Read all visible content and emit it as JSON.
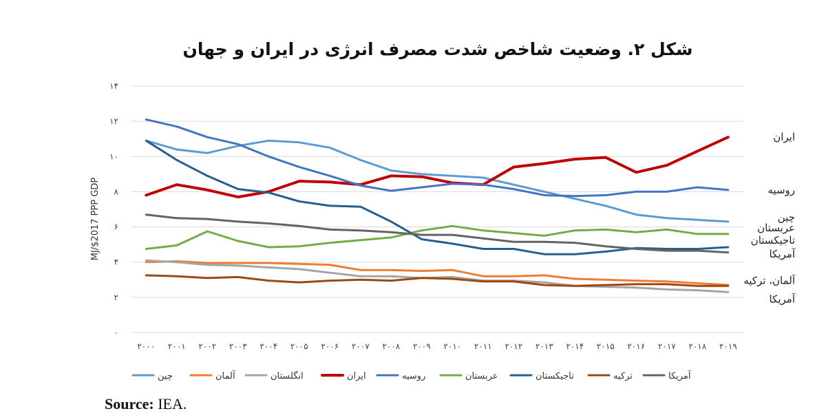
{
  "chart_data": {
    "type": "line",
    "title": "شکل ۲. وضعیت شاخص شدت مصرف انرژی در ایران و جهان",
    "ylabel": "MJ/$2017 PPP GDP",
    "ylim": [
      0,
      14
    ],
    "yticks": [
      {
        "value": 0,
        "label": "۰"
      },
      {
        "value": 2,
        "label": "۲"
      },
      {
        "value": 4,
        "label": "۴"
      },
      {
        "value": 6,
        "label": "۶"
      },
      {
        "value": 8,
        "label": "۸"
      },
      {
        "value": 10,
        "label": "۱۰"
      },
      {
        "value": 12,
        "label": "۱۲"
      },
      {
        "value": 14,
        "label": "۱۴"
      }
    ],
    "grid": true,
    "legend_position": "bottom",
    "categories": [
      "۲۰۰۰",
      "۲۰۰۱",
      "۲۰۰۲",
      "۲۰۰۳",
      "۲۰۰۴",
      "۲۰۰۵",
      "۲۰۰۶",
      "۲۰۰۷",
      "۲۰۰۸",
      "۲۰۰۹",
      "۲۰۱۰",
      "۲۰۱۱",
      "۲۰۱۲",
      "۲۰۱۳",
      "۲۰۱۴",
      "۲۰۱۵",
      "۲۰۱۶",
      "۲۰۱۷",
      "۲۰۱۸",
      "۲۰۱۹"
    ],
    "series": [
      {
        "name": "چین",
        "color": "#5b9bd5",
        "width": 3,
        "values": [
          10.9,
          10.4,
          10.2,
          10.6,
          10.9,
          10.8,
          10.5,
          9.8,
          9.2,
          9.0,
          8.9,
          8.8,
          8.4,
          8.0,
          7.6,
          7.2,
          6.7,
          6.5,
          6.4,
          6.3
        ]
      },
      {
        "name": "آلمان",
        "color": "#ed7d31",
        "width": 3,
        "values": [
          4.0,
          4.05,
          3.95,
          3.95,
          3.95,
          3.9,
          3.85,
          3.55,
          3.55,
          3.5,
          3.55,
          3.2,
          3.2,
          3.25,
          3.05,
          3.0,
          2.95,
          2.9,
          2.8,
          2.7
        ]
      },
      {
        "name": "انگلستان",
        "color": "#a5a5a5",
        "width": 3,
        "values": [
          4.1,
          4.0,
          3.85,
          3.8,
          3.7,
          3.6,
          3.4,
          3.2,
          3.2,
          3.1,
          3.15,
          2.95,
          2.95,
          2.85,
          2.65,
          2.6,
          2.55,
          2.45,
          2.4,
          2.3
        ]
      },
      {
        "name": "ایران",
        "color": "#c00000",
        "width": 4,
        "values": [
          7.8,
          8.4,
          8.1,
          7.7,
          8.0,
          8.6,
          8.55,
          8.4,
          8.9,
          8.85,
          8.5,
          8.4,
          9.4,
          9.6,
          9.85,
          9.95,
          9.1,
          9.5,
          10.3,
          11.1
        ]
      },
      {
        "name": "روسیه",
        "color": "#4472c4",
        "width": 3,
        "values": [
          12.1,
          11.7,
          11.1,
          10.7,
          10.0,
          9.4,
          8.9,
          8.35,
          8.05,
          8.25,
          8.45,
          8.4,
          8.15,
          7.8,
          7.75,
          7.8,
          8.0,
          8.0,
          8.25,
          8.1
        ]
      },
      {
        "name": "عربستان",
        "color": "#70ad47",
        "width": 3,
        "values": [
          4.75,
          4.95,
          5.75,
          5.2,
          4.85,
          4.9,
          5.1,
          5.25,
          5.4,
          5.8,
          6.05,
          5.8,
          5.65,
          5.5,
          5.8,
          5.85,
          5.7,
          5.85,
          5.6,
          5.6
        ]
      },
      {
        "name": "تاجیکستان",
        "color": "#255e91",
        "width": 3,
        "values": [
          10.9,
          9.8,
          8.9,
          8.15,
          7.95,
          7.45,
          7.2,
          7.15,
          6.3,
          5.3,
          5.05,
          4.75,
          4.75,
          4.45,
          4.45,
          4.6,
          4.8,
          4.75,
          4.75,
          4.85
        ]
      },
      {
        "name": "ترکیه",
        "color": "#9e480e",
        "width": 3,
        "values": [
          3.25,
          3.2,
          3.1,
          3.15,
          2.95,
          2.85,
          2.95,
          3.0,
          2.95,
          3.1,
          3.05,
          2.9,
          2.9,
          2.7,
          2.65,
          2.7,
          2.75,
          2.75,
          2.65,
          2.65
        ]
      },
      {
        "name": "آمریکا",
        "color": "#636363",
        "width": 3,
        "values": [
          6.7,
          6.5,
          6.45,
          6.3,
          6.2,
          6.05,
          5.85,
          5.8,
          5.7,
          5.55,
          5.55,
          5.35,
          5.15,
          5.15,
          5.1,
          4.9,
          4.75,
          4.65,
          4.65,
          4.55
        ]
      }
    ],
    "end_labels": [
      {
        "text": "ایران",
        "value": 11.1
      },
      {
        "text": "روسیه",
        "value": 8.1
      },
      {
        "text": "چین",
        "value": 6.55
      },
      {
        "text": "عربستان",
        "value": 5.95
      },
      {
        "text": "تاجیکستان",
        "value": 5.25
      },
      {
        "text": "آمریکا",
        "value": 4.45
      },
      {
        "text": "آلمان، ترکیه",
        "value": 2.95
      },
      {
        "text": "آمریکا",
        "value": 1.9
      }
    ]
  },
  "source": {
    "label": "Source:",
    "text": "IEA."
  }
}
